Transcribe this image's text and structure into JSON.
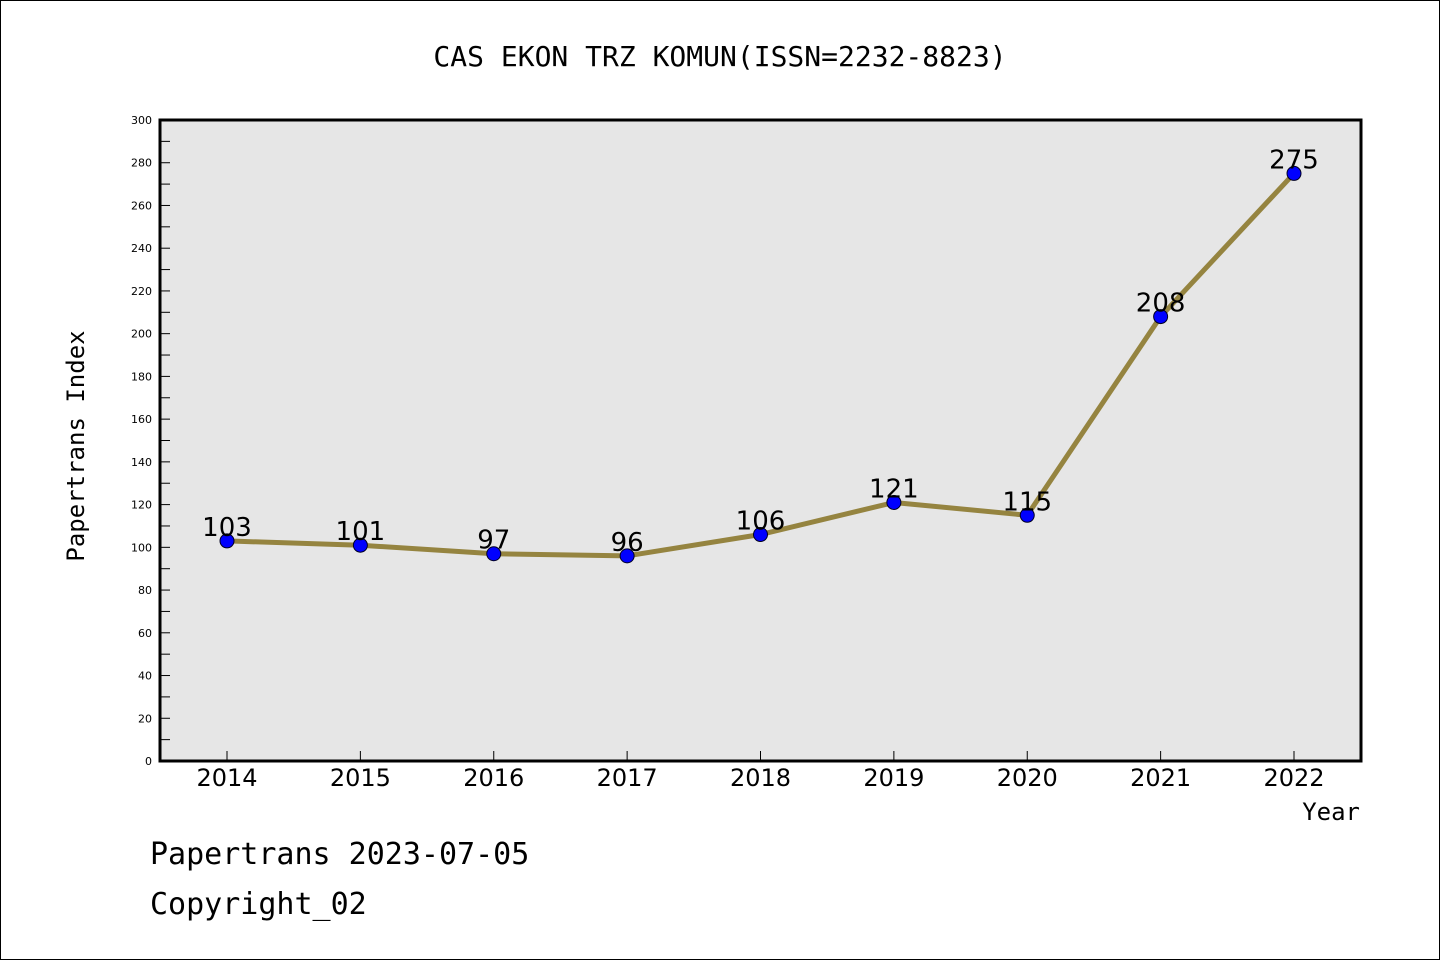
{
  "chart_data": {
    "type": "line",
    "title": "CAS EKON TRZ KOMUN(ISSN=2232-8823)",
    "xlabel": "Year",
    "ylabel": "Papertrans Index",
    "categories": [
      "2014",
      "2015",
      "2016",
      "2017",
      "2018",
      "2019",
      "2020",
      "2021",
      "2022"
    ],
    "values": [
      103,
      101,
      97,
      96,
      106,
      121,
      115,
      208,
      275
    ],
    "data_labels": [
      "103",
      "101",
      "97",
      "96",
      "106",
      "121",
      "115",
      "208",
      "275"
    ],
    "ylim": [
      0,
      300
    ],
    "yticks": [
      0,
      20,
      40,
      60,
      80,
      100,
      120,
      140,
      160,
      180,
      200,
      220,
      240,
      260,
      280,
      300
    ],
    "grid": false,
    "colors": {
      "line": "#958440",
      "marker": "#0000ff",
      "plot_background": "#e6e6e6"
    }
  },
  "footer": {
    "line1": "Papertrans 2023-07-05",
    "line2": "Copyright_02"
  }
}
